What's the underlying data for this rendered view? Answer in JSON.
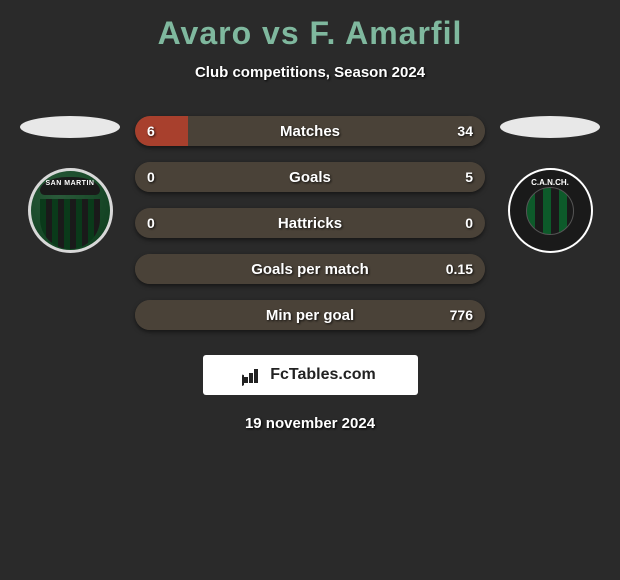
{
  "title": "Avaro vs F. Amarfil",
  "subtitle": "Club competitions, Season 2024",
  "date": "19 november 2024",
  "brand": "FcTables.com",
  "colors": {
    "title": "#7fb89e",
    "bar_left_fill": "#a8402d",
    "bar_right_fill": "#4a4238",
    "bar_neutral": "#4a4238"
  },
  "badges": {
    "left": {
      "text": "SAN MARTIN"
    },
    "right": {
      "text": "C.A.N.CH."
    }
  },
  "stats": [
    {
      "label": "Matches",
      "left_val": "6",
      "right_val": "34",
      "left_pct": 15,
      "right_pct": 85
    },
    {
      "label": "Goals",
      "left_val": "0",
      "right_val": "5",
      "left_pct": 0,
      "right_pct": 100
    },
    {
      "label": "Hattricks",
      "left_val": "0",
      "right_val": "0",
      "left_pct": 0,
      "right_pct": 0
    },
    {
      "label": "Goals per match",
      "left_val": "",
      "right_val": "0.15",
      "left_pct": 0,
      "right_pct": 100
    },
    {
      "label": "Min per goal",
      "left_val": "",
      "right_val": "776",
      "left_pct": 0,
      "right_pct": 100
    }
  ]
}
